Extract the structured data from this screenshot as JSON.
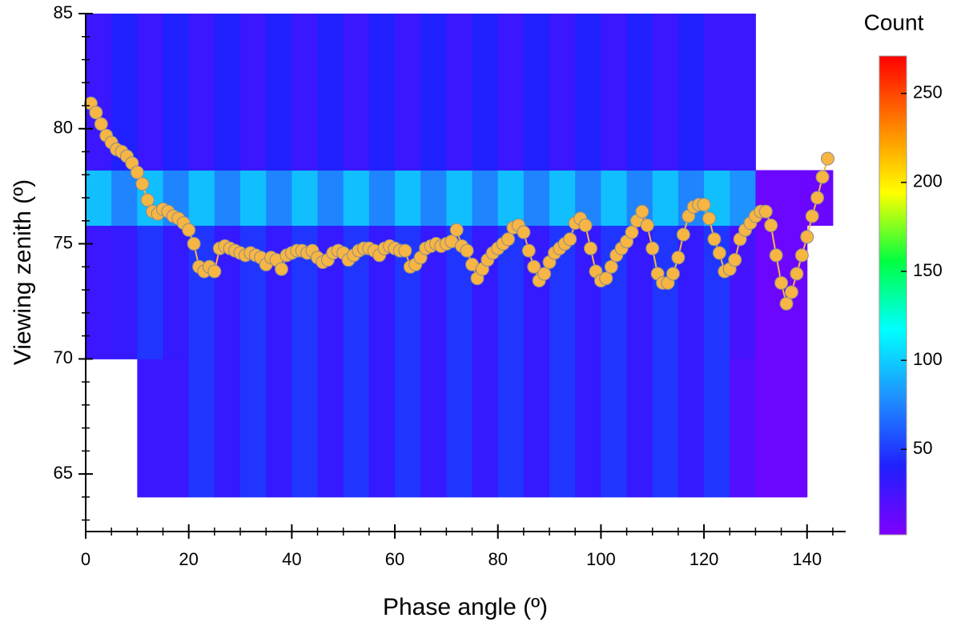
{
  "chart_data": {
    "type": "heatmap",
    "xlabel": "Phase angle (º)",
    "ylabel": "Viewing zenith (º)",
    "xlim": [
      0,
      147.5
    ],
    "ylim": [
      62.5,
      85
    ],
    "xticks": [
      0,
      20,
      40,
      60,
      80,
      100,
      120,
      140
    ],
    "yticks": [
      65,
      70,
      75,
      80,
      85
    ],
    "xminor": 5,
    "yminor": 1,
    "heatmap": {
      "x_bins": [
        0,
        5,
        10,
        15,
        20,
        25,
        30,
        35,
        40,
        45,
        50,
        55,
        60,
        65,
        70,
        75,
        80,
        85,
        90,
        95,
        100,
        105,
        110,
        115,
        120,
        125,
        130,
        135,
        140,
        145
      ],
      "y_bins": [
        64,
        70,
        75.8,
        78.2,
        85
      ],
      "counts": [
        [
          null,
          null,
          30,
          30,
          48,
          32,
          48,
          32,
          48,
          32,
          48,
          32,
          48,
          32,
          48,
          32,
          48,
          32,
          48,
          32,
          48,
          32,
          48,
          32,
          48,
          20,
          10,
          10,
          null
        ],
        [
          30,
          32,
          48,
          32,
          48,
          32,
          48,
          32,
          48,
          32,
          48,
          32,
          48,
          32,
          48,
          32,
          48,
          32,
          48,
          32,
          48,
          32,
          48,
          32,
          48,
          25,
          10,
          10,
          null
        ],
        [
          95,
          75,
          95,
          75,
          95,
          75,
          95,
          75,
          95,
          75,
          95,
          75,
          95,
          75,
          95,
          75,
          95,
          75,
          95,
          75,
          95,
          75,
          95,
          75,
          95,
          80,
          10,
          10,
          10
        ],
        [
          30,
          40,
          30,
          40,
          30,
          40,
          30,
          40,
          30,
          40,
          30,
          40,
          30,
          40,
          30,
          40,
          30,
          40,
          30,
          40,
          30,
          40,
          30,
          40,
          30,
          30,
          null,
          null,
          null
        ]
      ]
    },
    "colorbar": {
      "title": "Count",
      "lim": [
        2,
        271
      ],
      "ticks": [
        50,
        100,
        150,
        200,
        250
      ],
      "colormap": [
        "#7f00ff",
        "#2020ff",
        "#1e90ff",
        "#00ffff",
        "#00ff40",
        "#ffff00",
        "#ff8000",
        "#ff0000"
      ]
    },
    "series": [
      {
        "color": "#f7b544",
        "edge_color": "#8c8c8c",
        "x": [
          1,
          2,
          3,
          4,
          5,
          6,
          7,
          8,
          9,
          10,
          11,
          12,
          13,
          14,
          15,
          16,
          17,
          18,
          19,
          20,
          21,
          22,
          23,
          24,
          25,
          26,
          27,
          28,
          29,
          30,
          31,
          32,
          33,
          34,
          35,
          36,
          37,
          38,
          39,
          40,
          41,
          42,
          43,
          44,
          45,
          46,
          47,
          48,
          49,
          50,
          51,
          52,
          53,
          54,
          55,
          56,
          57,
          58,
          59,
          60,
          61,
          62,
          63,
          64,
          65,
          66,
          67,
          68,
          69,
          70,
          71,
          72,
          73,
          74,
          75,
          76,
          77,
          78,
          79,
          80,
          81,
          82,
          83,
          84,
          85,
          86,
          87,
          88,
          89,
          90,
          91,
          92,
          93,
          94,
          95,
          96,
          97,
          98,
          99,
          100,
          101,
          102,
          103,
          104,
          105,
          106,
          107,
          108,
          109,
          110,
          111,
          112,
          113,
          114,
          115,
          116,
          117,
          118,
          119,
          120,
          121,
          122,
          123,
          124,
          125,
          126,
          127,
          128,
          129,
          130,
          131,
          132,
          133,
          134,
          135,
          136,
          137,
          138,
          139,
          140,
          141,
          142,
          143,
          144
        ],
        "values": [
          81.1,
          80.7,
          80.2,
          79.7,
          79.4,
          79.1,
          79.0,
          78.8,
          78.5,
          78.1,
          77.6,
          76.9,
          76.4,
          76.3,
          76.5,
          76.4,
          76.2,
          76.1,
          75.9,
          75.6,
          75.0,
          74.0,
          73.8,
          74.0,
          73.8,
          74.8,
          74.9,
          74.8,
          74.7,
          74.6,
          74.5,
          74.6,
          74.5,
          74.4,
          74.1,
          74.4,
          74.3,
          73.9,
          74.5,
          74.6,
          74.7,
          74.7,
          74.6,
          74.7,
          74.4,
          74.2,
          74.3,
          74.6,
          74.7,
          74.6,
          74.3,
          74.5,
          74.7,
          74.8,
          74.8,
          74.7,
          74.5,
          74.8,
          74.9,
          74.8,
          74.7,
          74.7,
          74.0,
          74.1,
          74.4,
          74.8,
          74.9,
          75.0,
          74.9,
          75.0,
          75.1,
          75.6,
          74.9,
          74.7,
          74.1,
          73.5,
          73.9,
          74.3,
          74.6,
          74.8,
          75.0,
          75.2,
          75.7,
          75.8,
          75.5,
          74.7,
          74.0,
          73.4,
          73.7,
          74.2,
          74.6,
          74.8,
          75.0,
          75.2,
          75.9,
          76.1,
          75.8,
          74.8,
          73.8,
          73.4,
          73.5,
          74.0,
          74.5,
          74.8,
          75.1,
          75.5,
          76.0,
          76.4,
          75.8,
          74.8,
          73.7,
          73.3,
          73.3,
          73.7,
          74.4,
          75.4,
          76.2,
          76.6,
          76.7,
          76.7,
          76.1,
          75.2,
          74.6,
          73.8,
          73.9,
          74.3,
          75.2,
          75.6,
          75.9,
          76.2,
          76.4,
          76.4,
          75.8,
          74.5,
          73.3,
          72.4,
          72.9,
          73.7,
          74.5,
          75.3,
          76.2,
          77.0,
          77.9,
          78.7
        ]
      }
    ]
  }
}
